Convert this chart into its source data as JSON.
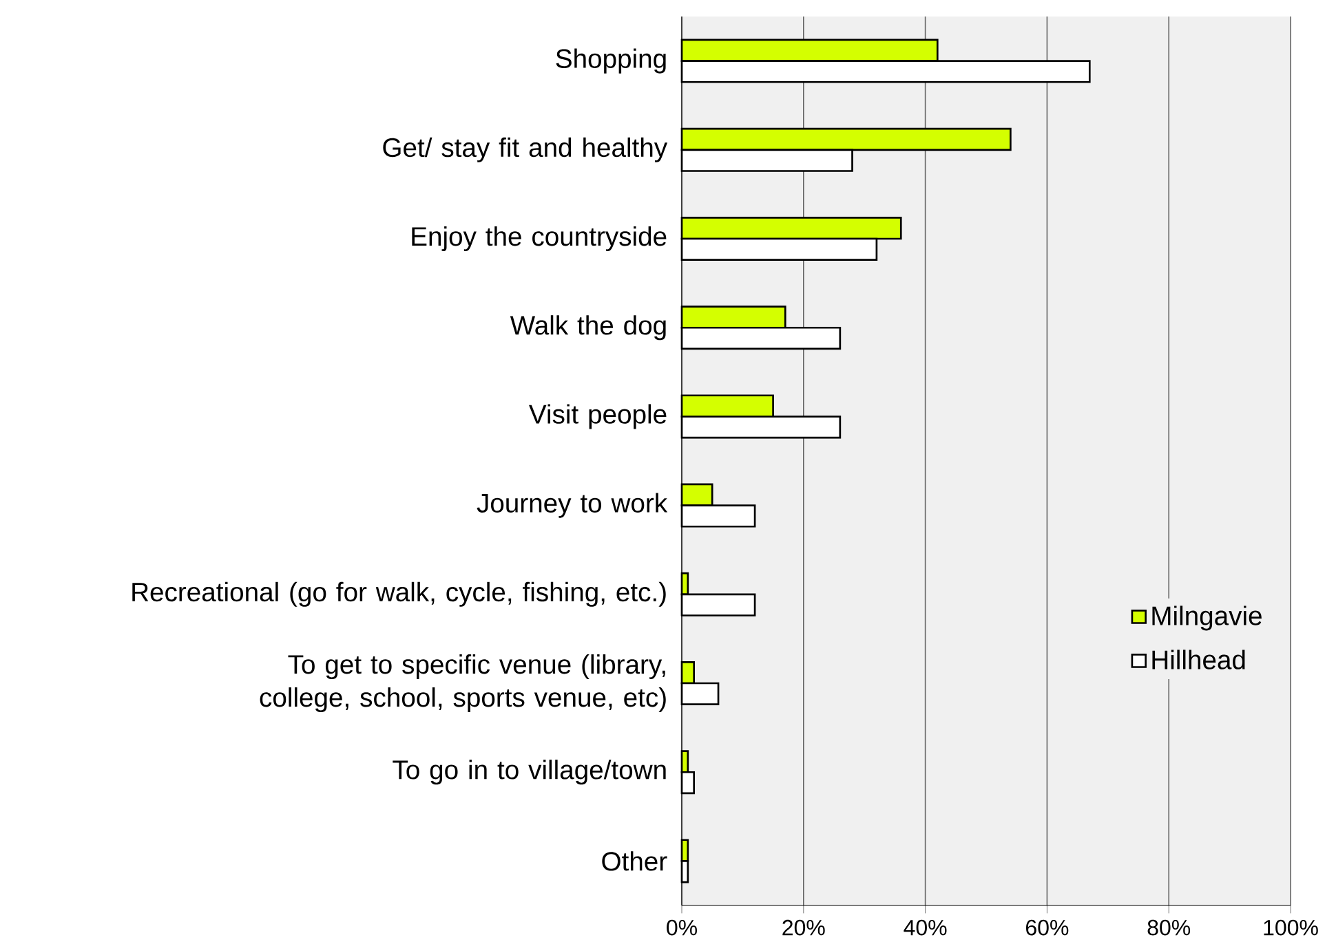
{
  "chart_data": {
    "type": "bar",
    "orientation": "horizontal",
    "categories": [
      "Shopping",
      "Get/ stay fit and healthy",
      "Enjoy the countryside",
      "Walk the dog",
      "Visit people",
      "Journey to work",
      "Recreational (go for walk, cycle, fishing, etc.)",
      "To get to specific venue (library, college, school, sports venue, etc)",
      "To go in to village/town",
      "Other"
    ],
    "series": [
      {
        "name": "Milngavie",
        "color": "#d4ff00",
        "values": [
          42,
          54,
          36,
          17,
          15,
          5,
          1,
          2,
          1,
          1
        ]
      },
      {
        "name": "Hillhead",
        "color": "#ffffff",
        "values": [
          67,
          28,
          32,
          26,
          26,
          12,
          12,
          6,
          2,
          1
        ]
      }
    ],
    "xlim": [
      0,
      100
    ],
    "xticks": [
      {
        "value": 0,
        "label": "0%"
      },
      {
        "value": 20,
        "label": "20%"
      },
      {
        "value": 40,
        "label": "40%"
      },
      {
        "value": 60,
        "label": "60%"
      },
      {
        "value": 80,
        "label": "80%"
      },
      {
        "value": 100,
        "label": "100%"
      }
    ],
    "grid": "x",
    "legend": "right"
  }
}
